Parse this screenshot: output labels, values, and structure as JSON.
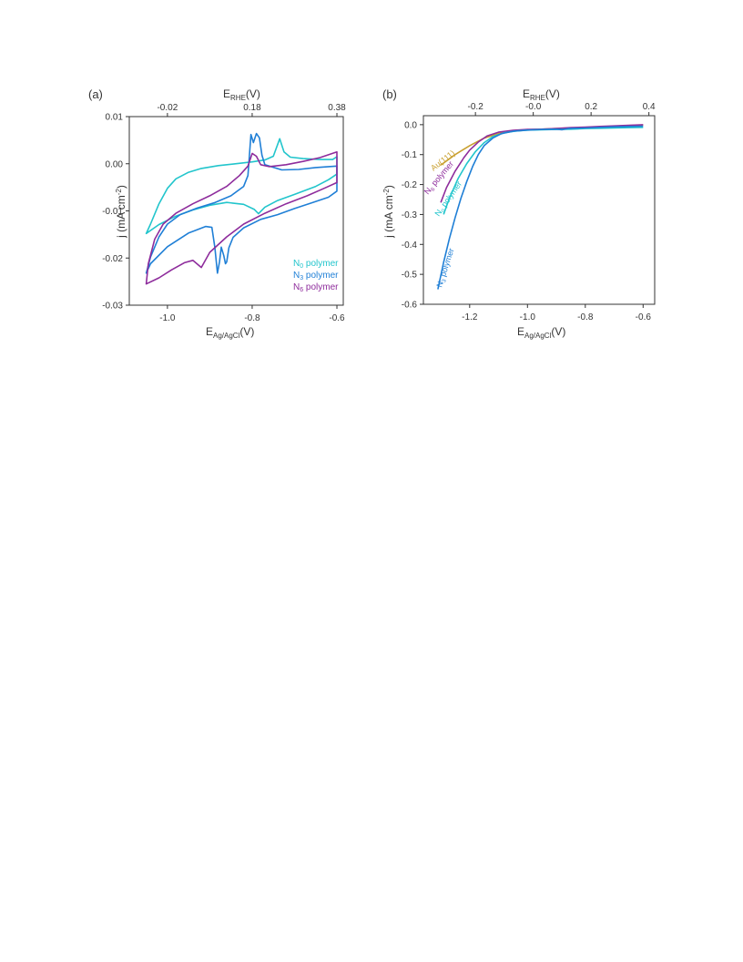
{
  "panels": {
    "a": {
      "label": "(a)",
      "bottom_axis": {
        "label": "E",
        "sub": "Ag/AgCl",
        "unit": "(V)",
        "ticks": [
          "-1.0",
          "-0.8",
          "-0.6"
        ]
      },
      "top_axis": {
        "label": "E",
        "sub": "RHE",
        "unit": "(V)",
        "ticks": [
          "-0.02",
          "0.18",
          "0.38"
        ]
      },
      "left_axis": {
        "label": "j (mA cm",
        "sup": "-2",
        "close": ")",
        "ticks": [
          "0.01",
          "0.00",
          "-0.01",
          "-0.02",
          "-0.03"
        ]
      },
      "legend": [
        {
          "prefix": "N",
          "sub": "0",
          "suffix": " polymer",
          "color": "#22C5CC"
        },
        {
          "prefix": "N",
          "sub": "3",
          "suffix": " polymer",
          "color": "#1F7FD6"
        },
        {
          "prefix": "N",
          "sub": "6",
          "suffix": " polymer",
          "color": "#8E2C9C"
        }
      ]
    },
    "b": {
      "label": "(b)",
      "bottom_axis": {
        "label": "E",
        "sub": "Ag/AgCl",
        "unit": "(V)",
        "ticks": [
          "-1.2",
          "-1.0",
          "-0.8",
          "-0.6"
        ]
      },
      "top_axis": {
        "label": "E",
        "sub": "RHE",
        "unit": "(V)",
        "ticks": [
          "-0.2",
          "-0.0",
          "0.2",
          "0.4"
        ]
      },
      "left_axis": {
        "label": "j (mA cm",
        "sup": "-2",
        "close": ")",
        "ticks": [
          "0.0",
          "-0.1",
          "-0.2",
          "-0.3",
          "-0.4",
          "-0.5",
          "-0.6"
        ]
      },
      "curve_labels": [
        {
          "prefix": "Au(111)",
          "sub": "",
          "suffix": "",
          "color": "#C9A030"
        },
        {
          "prefix": "N",
          "sub": "6",
          "suffix": " polymer",
          "color": "#8E2C9C"
        },
        {
          "prefix": "N",
          "sub": "0",
          "suffix": " polymer",
          "color": "#22C5CC"
        },
        {
          "prefix": "N",
          "sub": "3",
          "suffix": " polymer",
          "color": "#1F7FD6"
        }
      ]
    }
  },
  "chart_data": [
    {
      "type": "line",
      "panel": "a",
      "xlabel": "E_Ag/AgCl (V)",
      "x2label": "E_RHE (V)",
      "ylabel": "j (mA cm-2)",
      "xlim": [
        -1.09,
        -0.585
      ],
      "ylim": [
        -0.03,
        0.01
      ],
      "x_ticks": [
        -1.0,
        -0.8,
        -0.6
      ],
      "x2_ticks": [
        -0.02,
        0.18,
        0.38
      ],
      "x2_offset": 0.98,
      "y_ticks": [
        0.01,
        0.0,
        -0.01,
        -0.02,
        -0.03
      ],
      "legend_position": "bottom-right",
      "series": [
        {
          "name": "N0 polymer",
          "color": "#22C5CC",
          "loop": true,
          "points": [
            [
              -1.05,
              -0.0148
            ],
            [
              -1.04,
              -0.0128
            ],
            [
              -1.02,
              -0.0085
            ],
            [
              -1.0,
              -0.0052
            ],
            [
              -0.98,
              -0.0032
            ],
            [
              -0.95,
              -0.0018
            ],
            [
              -0.92,
              -0.001
            ],
            [
              -0.88,
              -0.0004
            ],
            [
              -0.84,
              0.0
            ],
            [
              -0.8,
              0.0004
            ],
            [
              -0.77,
              0.0008
            ],
            [
              -0.75,
              0.0016
            ],
            [
              -0.735,
              0.0053
            ],
            [
              -0.725,
              0.0025
            ],
            [
              -0.71,
              0.0014
            ],
            [
              -0.68,
              0.0011
            ],
            [
              -0.64,
              0.0009
            ],
            [
              -0.61,
              0.0009
            ],
            [
              -0.6,
              0.0015
            ],
            [
              -0.6,
              -0.0022
            ],
            [
              -0.62,
              -0.0034
            ],
            [
              -0.65,
              -0.0048
            ],
            [
              -0.7,
              -0.0065
            ],
            [
              -0.74,
              -0.0078
            ],
            [
              -0.77,
              -0.0092
            ],
            [
              -0.785,
              -0.0106
            ],
            [
              -0.795,
              -0.0097
            ],
            [
              -0.82,
              -0.0086
            ],
            [
              -0.86,
              -0.0082
            ],
            [
              -0.9,
              -0.0088
            ],
            [
              -0.94,
              -0.0098
            ],
            [
              -0.98,
              -0.0111
            ],
            [
              -1.02,
              -0.0129
            ],
            [
              -1.05,
              -0.0148
            ]
          ]
        },
        {
          "name": "N3 polymer",
          "color": "#1F7FD6",
          "loop": true,
          "points": [
            [
              -1.05,
              -0.0232
            ],
            [
              -1.04,
              -0.0198
            ],
            [
              -1.02,
              -0.0155
            ],
            [
              -1.0,
              -0.0128
            ],
            [
              -0.97,
              -0.0108
            ],
            [
              -0.93,
              -0.0094
            ],
            [
              -0.89,
              -0.0083
            ],
            [
              -0.85,
              -0.0068
            ],
            [
              -0.82,
              -0.0048
            ],
            [
              -0.81,
              -0.0025
            ],
            [
              -0.803,
              0.0062
            ],
            [
              -0.797,
              0.0045
            ],
            [
              -0.79,
              0.0064
            ],
            [
              -0.783,
              0.0055
            ],
            [
              -0.777,
              0.0018
            ],
            [
              -0.77,
              -0.0002
            ],
            [
              -0.73,
              -0.0013
            ],
            [
              -0.69,
              -0.0012
            ],
            [
              -0.65,
              -0.0008
            ],
            [
              -0.6,
              -0.0005
            ],
            [
              -0.6,
              -0.0058
            ],
            [
              -0.62,
              -0.0071
            ],
            [
              -0.66,
              -0.0083
            ],
            [
              -0.7,
              -0.0095
            ],
            [
              -0.74,
              -0.0108
            ],
            [
              -0.78,
              -0.0118
            ],
            [
              -0.82,
              -0.0136
            ],
            [
              -0.845,
              -0.0156
            ],
            [
              -0.855,
              -0.0178
            ],
            [
              -0.86,
              -0.0208
            ],
            [
              -0.863,
              -0.0212
            ],
            [
              -0.867,
              -0.0195
            ],
            [
              -0.873,
              -0.0177
            ],
            [
              -0.877,
              -0.0208
            ],
            [
              -0.882,
              -0.0232
            ],
            [
              -0.888,
              -0.0178
            ],
            [
              -0.895,
              -0.0135
            ],
            [
              -0.91,
              -0.0133
            ],
            [
              -0.95,
              -0.0147
            ],
            [
              -1.0,
              -0.0176
            ],
            [
              -1.04,
              -0.0212
            ],
            [
              -1.05,
              -0.0232
            ]
          ]
        },
        {
          "name": "N6 polymer",
          "color": "#8E2C9C",
          "loop": true,
          "points": [
            [
              -1.05,
              -0.0255
            ],
            [
              -1.045,
              -0.0212
            ],
            [
              -1.03,
              -0.016
            ],
            [
              -1.01,
              -0.0128
            ],
            [
              -0.98,
              -0.0105
            ],
            [
              -0.94,
              -0.0085
            ],
            [
              -0.9,
              -0.0068
            ],
            [
              -0.86,
              -0.0048
            ],
            [
              -0.83,
              -0.0025
            ],
            [
              -0.81,
              -0.0005
            ],
            [
              -0.8,
              0.0022
            ],
            [
              -0.79,
              0.0016
            ],
            [
              -0.78,
              -0.0002
            ],
            [
              -0.76,
              -0.0006
            ],
            [
              -0.72,
              -0.0002
            ],
            [
              -0.68,
              0.0005
            ],
            [
              -0.64,
              0.0013
            ],
            [
              -0.6,
              0.0025
            ],
            [
              -0.6,
              -0.004
            ],
            [
              -0.63,
              -0.0052
            ],
            [
              -0.67,
              -0.0068
            ],
            [
              -0.72,
              -0.0085
            ],
            [
              -0.77,
              -0.0105
            ],
            [
              -0.82,
              -0.0128
            ],
            [
              -0.86,
              -0.0155
            ],
            [
              -0.9,
              -0.0188
            ],
            [
              -0.92,
              -0.022
            ],
            [
              -0.94,
              -0.0205
            ],
            [
              -0.96,
              -0.021
            ],
            [
              -0.99,
              -0.0225
            ],
            [
              -1.02,
              -0.0242
            ],
            [
              -1.05,
              -0.0255
            ]
          ]
        }
      ]
    },
    {
      "type": "line",
      "panel": "b",
      "xlabel": "E_Ag/AgCl (V)",
      "x2label": "E_RHE (V)",
      "ylabel": "j (mA cm-2)",
      "xlim": [
        -1.36,
        -0.56
      ],
      "ylim": [
        -0.6,
        0.03
      ],
      "x_ticks": [
        -1.2,
        -1.0,
        -0.8,
        -0.6
      ],
      "x2_ticks": [
        -0.2,
        0.0,
        0.2,
        0.4
      ],
      "x2_offset": 0.98,
      "y_ticks": [
        0.0,
        -0.1,
        -0.2,
        -0.3,
        -0.4,
        -0.5,
        -0.6
      ],
      "series": [
        {
          "name": "Au(111)",
          "color": "#C9A030",
          "loop": false,
          "points": [
            [
              -1.3,
              -0.135
            ],
            [
              -1.25,
              -0.1
            ],
            [
              -1.2,
              -0.07
            ],
            [
              -1.15,
              -0.045
            ],
            [
              -1.1,
              -0.03
            ],
            [
              -1.05,
              -0.021
            ],
            [
              -1.0,
              -0.017
            ],
            [
              -0.95,
              -0.015
            ],
            [
              -0.9,
              -0.013
            ],
            [
              -0.85,
              -0.011
            ],
            [
              -0.8,
              -0.009
            ],
            [
              -0.75,
              -0.007
            ],
            [
              -0.7,
              -0.005
            ],
            [
              -0.65,
              -0.003
            ],
            [
              -0.6,
              -0.001
            ]
          ]
        },
        {
          "name": "N6 polymer",
          "color": "#8E2C9C",
          "loop": false,
          "points": [
            [
              -1.3,
              -0.26
            ],
            [
              -1.28,
              -0.21
            ],
            [
              -1.25,
              -0.155
            ],
            [
              -1.22,
              -0.11
            ],
            [
              -1.2,
              -0.085
            ],
            [
              -1.17,
              -0.058
            ],
            [
              -1.14,
              -0.038
            ],
            [
              -1.1,
              -0.025
            ],
            [
              -1.05,
              -0.019
            ],
            [
              -1.0,
              -0.016
            ],
            [
              -0.95,
              -0.015
            ],
            [
              -0.9,
              -0.013
            ],
            [
              -0.85,
              -0.01
            ],
            [
              -0.8,
              -0.008
            ],
            [
              -0.75,
              -0.006
            ],
            [
              -0.7,
              -0.004
            ],
            [
              -0.65,
              -0.002
            ],
            [
              -0.6,
              0.0
            ]
          ]
        },
        {
          "name": "N0 polymer",
          "color": "#22C5CC",
          "loop": false,
          "points": [
            [
              -1.29,
              -0.3
            ],
            [
              -1.27,
              -0.245
            ],
            [
              -1.24,
              -0.18
            ],
            [
              -1.21,
              -0.13
            ],
            [
              -1.18,
              -0.09
            ],
            [
              -1.15,
              -0.06
            ],
            [
              -1.12,
              -0.04
            ],
            [
              -1.08,
              -0.027
            ],
            [
              -1.04,
              -0.021
            ],
            [
              -1.0,
              -0.018
            ],
            [
              -0.95,
              -0.017
            ],
            [
              -0.9,
              -0.016
            ],
            [
              -0.85,
              -0.015
            ],
            [
              -0.8,
              -0.013
            ],
            [
              -0.75,
              -0.012
            ],
            [
              -0.7,
              -0.011
            ],
            [
              -0.65,
              -0.01
            ],
            [
              -0.6,
              -0.009
            ]
          ]
        },
        {
          "name": "N3 polymer",
          "color": "#1F7FD6",
          "loop": false,
          "points": [
            [
              -1.31,
              -0.55
            ],
            [
              -1.29,
              -0.46
            ],
            [
              -1.27,
              -0.38
            ],
            [
              -1.25,
              -0.31
            ],
            [
              -1.23,
              -0.245
            ],
            [
              -1.21,
              -0.19
            ],
            [
              -1.19,
              -0.14
            ],
            [
              -1.17,
              -0.1
            ],
            [
              -1.15,
              -0.07
            ],
            [
              -1.12,
              -0.045
            ],
            [
              -1.09,
              -0.03
            ],
            [
              -1.05,
              -0.022
            ],
            [
              -1.0,
              -0.018
            ],
            [
              -0.95,
              -0.016
            ],
            [
              -0.9,
              -0.015
            ],
            [
              -0.88,
              -0.017
            ],
            [
              -0.86,
              -0.013
            ],
            [
              -0.8,
              -0.011
            ],
            [
              -0.75,
              -0.009
            ],
            [
              -0.7,
              -0.007
            ],
            [
              -0.65,
              -0.006
            ],
            [
              -0.6,
              -0.005
            ]
          ]
        }
      ]
    }
  ]
}
